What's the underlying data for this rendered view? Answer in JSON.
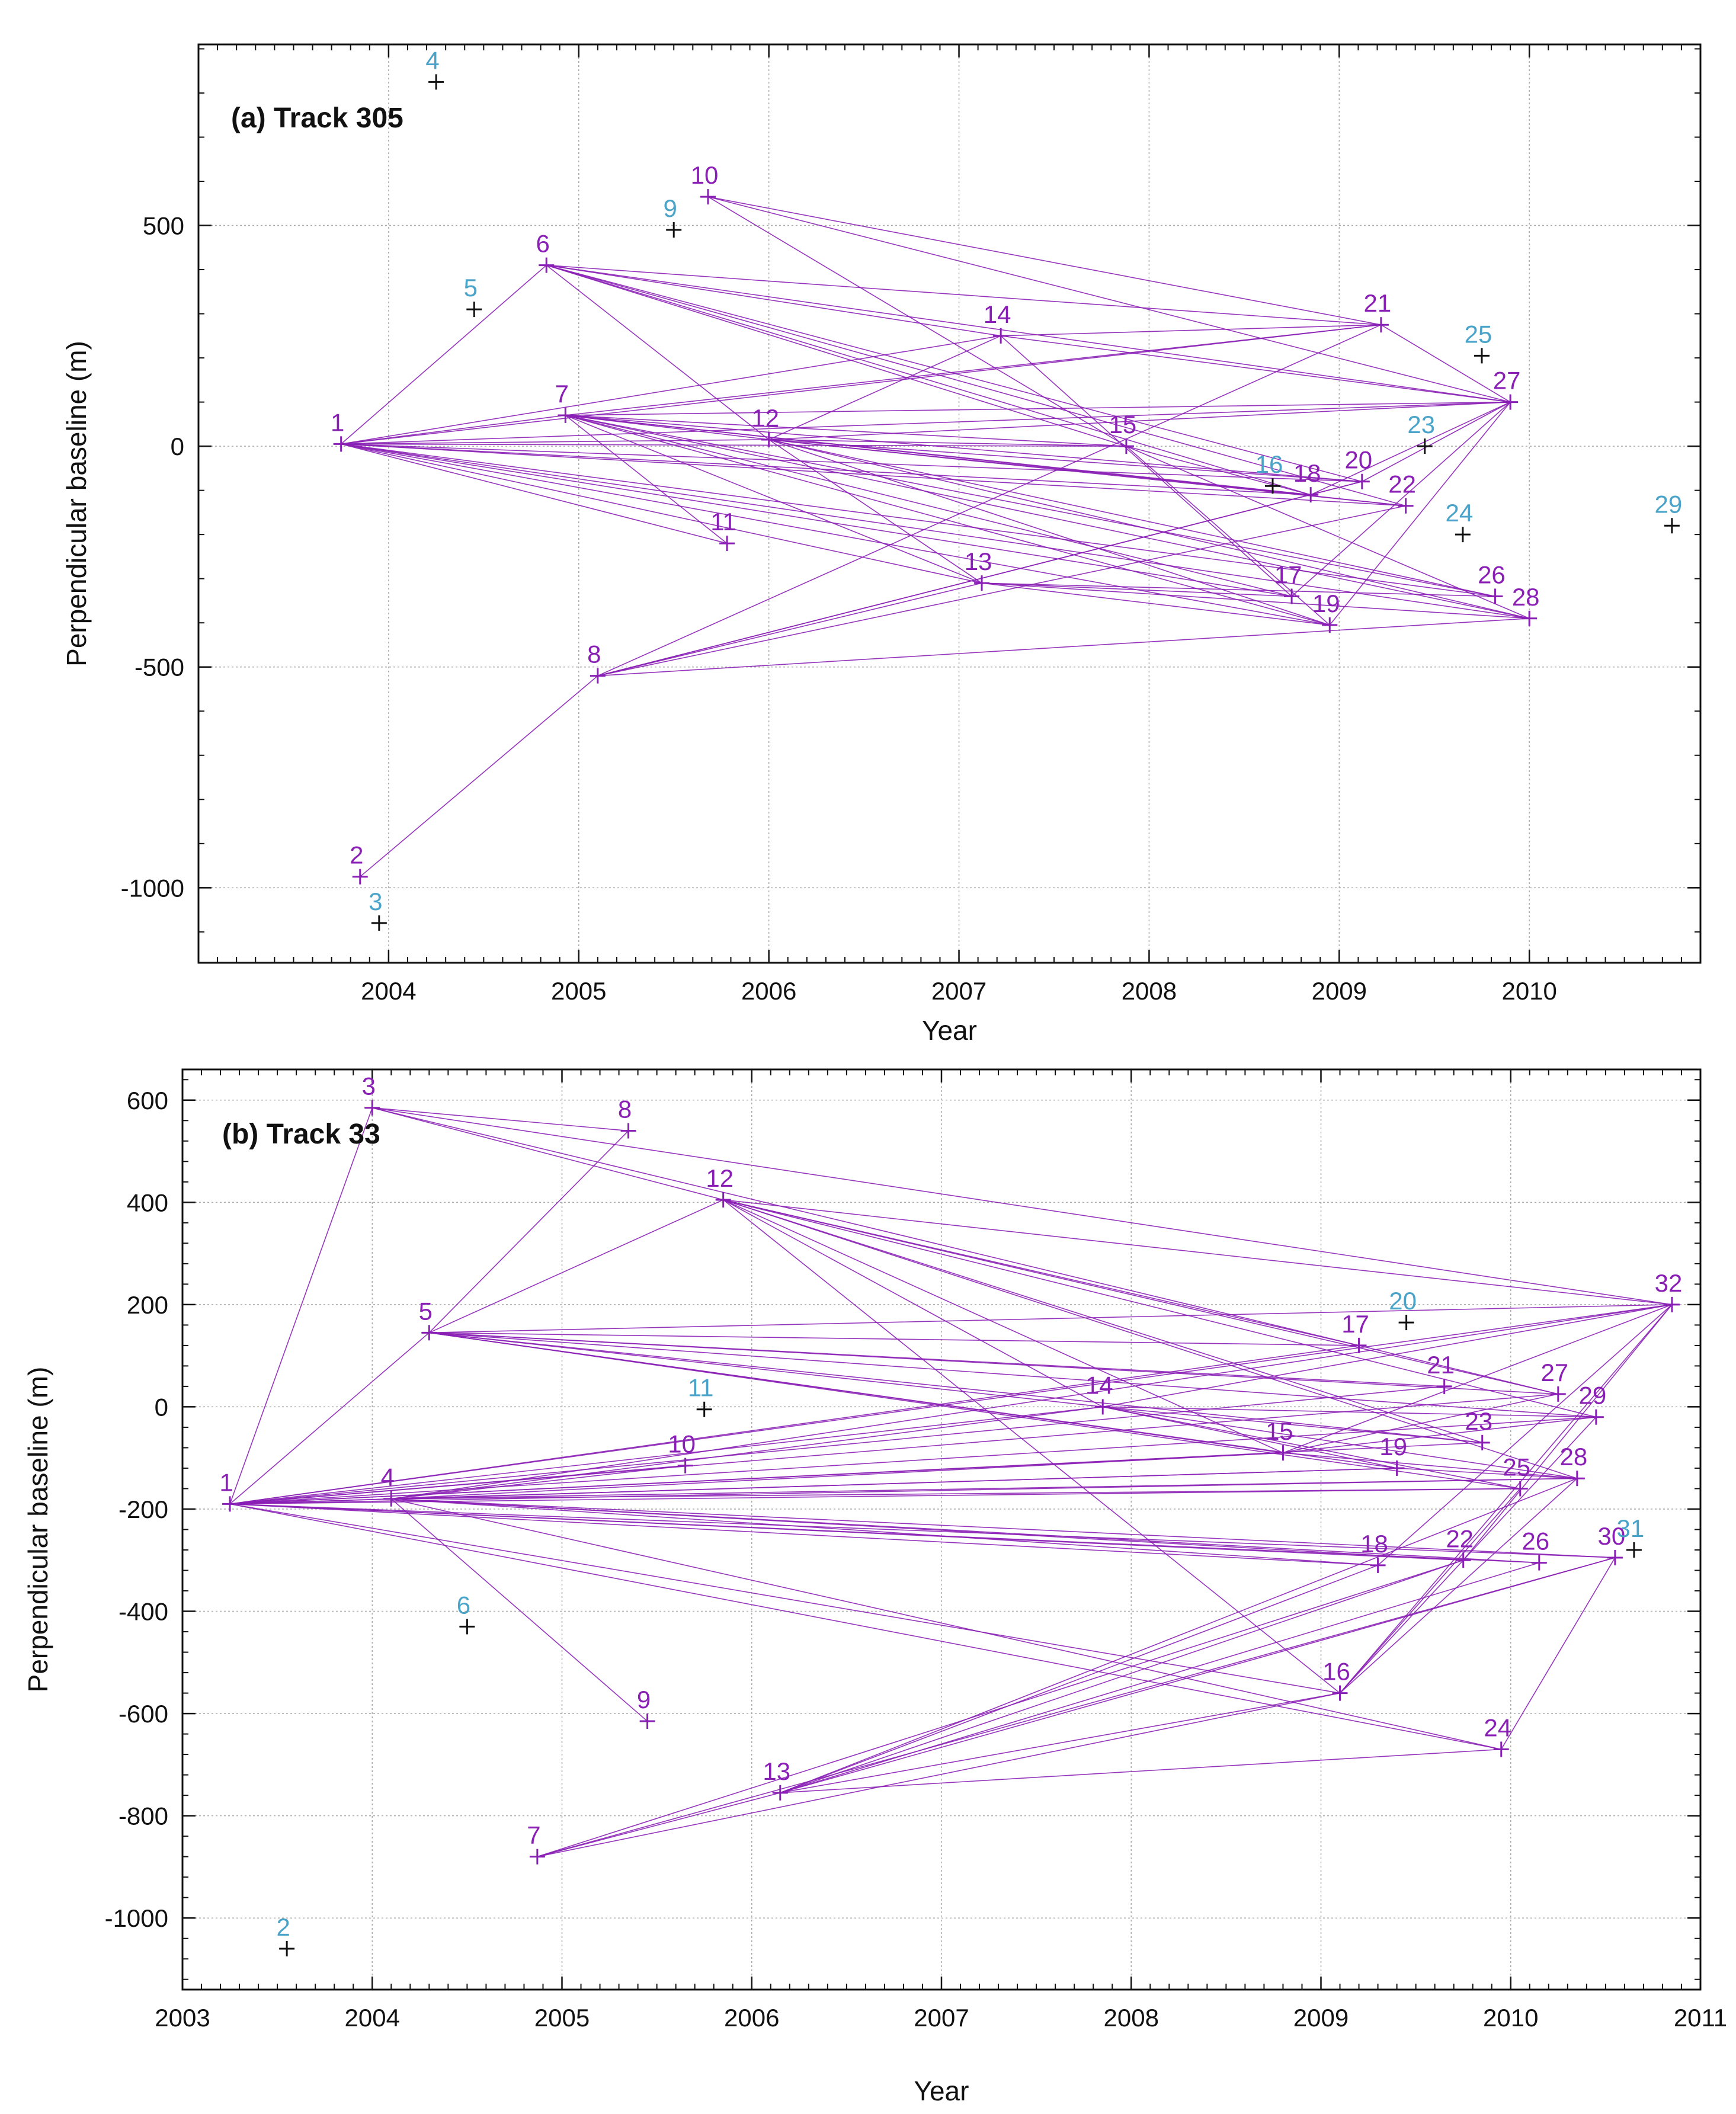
{
  "colors": {
    "active": "#8a1fb5",
    "inactive_label": "#4aa3c8",
    "inactive_marker": "#111111",
    "grid": "#aaaaaa",
    "axis": "#111111"
  },
  "chart_data": [
    {
      "type": "scatter",
      "title": "(a) Track 305",
      "xlabel": "Year",
      "ylabel": "Perpendicular baseline (m)",
      "xlim": [
        2003.0,
        2010.9
      ],
      "ylim": [
        -1170,
        910
      ],
      "xticks": [
        2004,
        2005,
        2006,
        2007,
        2008,
        2009,
        2010
      ],
      "xtick_labels": [
        "2004",
        "2005",
        "2006",
        "2007",
        "2008",
        "2009",
        "2010"
      ],
      "yticks": [
        -1000,
        -500,
        0,
        500
      ],
      "ytick_labels": [
        "-1000",
        "-500",
        "0",
        "500"
      ],
      "points": [
        {
          "id": "1",
          "x": 2003.75,
          "y": 5,
          "active": true
        },
        {
          "id": "2",
          "x": 2003.85,
          "y": -975,
          "active": true
        },
        {
          "id": "3",
          "x": 2003.95,
          "y": -1080,
          "active": false
        },
        {
          "id": "4",
          "x": 2004.25,
          "y": 825,
          "active": false
        },
        {
          "id": "5",
          "x": 2004.45,
          "y": 310,
          "active": false
        },
        {
          "id": "6",
          "x": 2004.83,
          "y": 410,
          "active": true
        },
        {
          "id": "7",
          "x": 2004.93,
          "y": 70,
          "active": true
        },
        {
          "id": "8",
          "x": 2005.1,
          "y": -520,
          "active": true
        },
        {
          "id": "9",
          "x": 2005.5,
          "y": 490,
          "active": false
        },
        {
          "id": "10",
          "x": 2005.68,
          "y": 565,
          "active": true
        },
        {
          "id": "11",
          "x": 2005.78,
          "y": -220,
          "active": true
        },
        {
          "id": "12",
          "x": 2006.0,
          "y": 15,
          "active": true
        },
        {
          "id": "13",
          "x": 2007.12,
          "y": -310,
          "active": true
        },
        {
          "id": "14",
          "x": 2007.22,
          "y": 250,
          "active": true
        },
        {
          "id": "15",
          "x": 2007.88,
          "y": 0,
          "active": true
        },
        {
          "id": "16",
          "x": 2008.65,
          "y": -90,
          "active": false
        },
        {
          "id": "17",
          "x": 2008.75,
          "y": -340,
          "active": true
        },
        {
          "id": "18",
          "x": 2008.85,
          "y": -110,
          "active": true
        },
        {
          "id": "19",
          "x": 2008.95,
          "y": -405,
          "active": true
        },
        {
          "id": "20",
          "x": 2009.12,
          "y": -80,
          "active": true
        },
        {
          "id": "21",
          "x": 2009.22,
          "y": 275,
          "active": true
        },
        {
          "id": "22",
          "x": 2009.35,
          "y": -135,
          "active": true
        },
        {
          "id": "23",
          "x": 2009.45,
          "y": 0,
          "active": false
        },
        {
          "id": "24",
          "x": 2009.65,
          "y": -200,
          "active": false
        },
        {
          "id": "25",
          "x": 2009.75,
          "y": 205,
          "active": false
        },
        {
          "id": "26",
          "x": 2009.82,
          "y": -340,
          "active": true
        },
        {
          "id": "27",
          "x": 2009.9,
          "y": 100,
          "active": true
        },
        {
          "id": "28",
          "x": 2010.0,
          "y": -390,
          "active": true
        },
        {
          "id": "29",
          "x": 2010.75,
          "y": -180,
          "active": false
        }
      ],
      "pairs": [
        [
          "1",
          "6"
        ],
        [
          "1",
          "7"
        ],
        [
          "1",
          "12"
        ],
        [
          "1",
          "13"
        ],
        [
          "1",
          "14"
        ],
        [
          "1",
          "15"
        ],
        [
          "1",
          "18"
        ],
        [
          "1",
          "19"
        ],
        [
          "1",
          "20"
        ],
        [
          "1",
          "21"
        ],
        [
          "1",
          "22"
        ],
        [
          "1",
          "26"
        ],
        [
          "1",
          "27"
        ],
        [
          "1",
          "28"
        ],
        [
          "1",
          "11"
        ],
        [
          "1",
          "17"
        ],
        [
          "2",
          "8"
        ],
        [
          "6",
          "12"
        ],
        [
          "6",
          "14"
        ],
        [
          "6",
          "15"
        ],
        [
          "6",
          "18"
        ],
        [
          "6",
          "20"
        ],
        [
          "6",
          "21"
        ],
        [
          "6",
          "22"
        ],
        [
          "6",
          "27"
        ],
        [
          "7",
          "12"
        ],
        [
          "7",
          "13"
        ],
        [
          "7",
          "15"
        ],
        [
          "7",
          "17"
        ],
        [
          "7",
          "18"
        ],
        [
          "7",
          "19"
        ],
        [
          "7",
          "20"
        ],
        [
          "7",
          "21"
        ],
        [
          "7",
          "22"
        ],
        [
          "7",
          "26"
        ],
        [
          "7",
          "27"
        ],
        [
          "7",
          "28"
        ],
        [
          "7",
          "11"
        ],
        [
          "8",
          "13"
        ],
        [
          "8",
          "18"
        ],
        [
          "8",
          "20"
        ],
        [
          "8",
          "21"
        ],
        [
          "8",
          "28"
        ],
        [
          "8",
          "22"
        ],
        [
          "10",
          "21"
        ],
        [
          "10",
          "27"
        ],
        [
          "10",
          "15"
        ],
        [
          "12",
          "13"
        ],
        [
          "12",
          "15"
        ],
        [
          "12",
          "18"
        ],
        [
          "12",
          "19"
        ],
        [
          "12",
          "20"
        ],
        [
          "12",
          "22"
        ],
        [
          "12",
          "26"
        ],
        [
          "12",
          "27"
        ],
        [
          "12",
          "28"
        ],
        [
          "12",
          "14"
        ],
        [
          "13",
          "26"
        ],
        [
          "13",
          "28"
        ],
        [
          "13",
          "19"
        ],
        [
          "13",
          "17"
        ],
        [
          "14",
          "27"
        ],
        [
          "14",
          "17"
        ],
        [
          "14",
          "21"
        ],
        [
          "15",
          "18"
        ],
        [
          "15",
          "28"
        ],
        [
          "15",
          "19"
        ],
        [
          "17",
          "27"
        ],
        [
          "19",
          "27"
        ],
        [
          "18",
          "27"
        ],
        [
          "20",
          "27"
        ],
        [
          "20",
          "18"
        ],
        [
          "21",
          "27"
        ]
      ]
    },
    {
      "type": "scatter",
      "title": "(b) Track 33",
      "xlabel": "Year",
      "ylabel": "Perpendicular baseline (m)",
      "xlim": [
        2003.0,
        2011.0
      ],
      "ylim": [
        -1140,
        660
      ],
      "xticks": [
        2003,
        2004,
        2005,
        2006,
        2007,
        2008,
        2009,
        2010,
        2011
      ],
      "xtick_labels": [
        "2003",
        "2004",
        "2005",
        "2006",
        "2007",
        "2008",
        "2009",
        "2010",
        "2011"
      ],
      "yticks": [
        -1000,
        -800,
        -600,
        -400,
        -200,
        0,
        200,
        400,
        600
      ],
      "ytick_labels": [
        "-1000",
        "-800",
        "-600",
        "-400",
        "-200",
        "0",
        "200",
        "400",
        "600"
      ],
      "points": [
        {
          "id": "1",
          "x": 2003.25,
          "y": -190,
          "active": true
        },
        {
          "id": "2",
          "x": 2003.55,
          "y": -1060,
          "active": false
        },
        {
          "id": "3",
          "x": 2004.0,
          "y": 585,
          "active": true
        },
        {
          "id": "4",
          "x": 2004.1,
          "y": -180,
          "active": true
        },
        {
          "id": "5",
          "x": 2004.3,
          "y": 145,
          "active": true
        },
        {
          "id": "6",
          "x": 2004.5,
          "y": -430,
          "active": false
        },
        {
          "id": "7",
          "x": 2004.87,
          "y": -880,
          "active": true
        },
        {
          "id": "8",
          "x": 2005.35,
          "y": 540,
          "active": true
        },
        {
          "id": "9",
          "x": 2005.45,
          "y": -615,
          "active": true
        },
        {
          "id": "10",
          "x": 2005.65,
          "y": -115,
          "active": true
        },
        {
          "id": "11",
          "x": 2005.75,
          "y": -5,
          "active": false
        },
        {
          "id": "12",
          "x": 2005.85,
          "y": 405,
          "active": true
        },
        {
          "id": "13",
          "x": 2006.15,
          "y": -755,
          "active": true
        },
        {
          "id": "14",
          "x": 2007.85,
          "y": 0,
          "active": true
        },
        {
          "id": "15",
          "x": 2008.8,
          "y": -90,
          "active": true
        },
        {
          "id": "16",
          "x": 2009.1,
          "y": -560,
          "active": true
        },
        {
          "id": "17",
          "x": 2009.2,
          "y": 120,
          "active": true
        },
        {
          "id": "18",
          "x": 2009.3,
          "y": -310,
          "active": true
        },
        {
          "id": "19",
          "x": 2009.4,
          "y": -120,
          "active": true
        },
        {
          "id": "20",
          "x": 2009.45,
          "y": 165,
          "active": false
        },
        {
          "id": "21",
          "x": 2009.65,
          "y": 40,
          "active": true
        },
        {
          "id": "22",
          "x": 2009.75,
          "y": -300,
          "active": true
        },
        {
          "id": "23",
          "x": 2009.85,
          "y": -70,
          "active": true
        },
        {
          "id": "24",
          "x": 2009.95,
          "y": -670,
          "active": true
        },
        {
          "id": "25",
          "x": 2010.05,
          "y": -160,
          "active": true
        },
        {
          "id": "26",
          "x": 2010.15,
          "y": -305,
          "active": true
        },
        {
          "id": "27",
          "x": 2010.25,
          "y": 25,
          "active": true
        },
        {
          "id": "28",
          "x": 2010.35,
          "y": -140,
          "active": true
        },
        {
          "id": "29",
          "x": 2010.45,
          "y": -20,
          "active": true
        },
        {
          "id": "30",
          "x": 2010.55,
          "y": -295,
          "active": true
        },
        {
          "id": "31",
          "x": 2010.65,
          "y": -280,
          "active": false
        },
        {
          "id": "32",
          "x": 2010.85,
          "y": 200,
          "active": true
        }
      ],
      "pairs": [
        [
          "1",
          "3"
        ],
        [
          "1",
          "4"
        ],
        [
          "1",
          "5"
        ],
        [
          "1",
          "10"
        ],
        [
          "1",
          "14"
        ],
        [
          "1",
          "15"
        ],
        [
          "1",
          "17"
        ],
        [
          "1",
          "18"
        ],
        [
          "1",
          "19"
        ],
        [
          "1",
          "21"
        ],
        [
          "1",
          "22"
        ],
        [
          "1",
          "23"
        ],
        [
          "1",
          "25"
        ],
        [
          "1",
          "26"
        ],
        [
          "1",
          "27"
        ],
        [
          "1",
          "28"
        ],
        [
          "1",
          "29"
        ],
        [
          "1",
          "30"
        ],
        [
          "1",
          "32"
        ],
        [
          "1",
          "16"
        ],
        [
          "1",
          "24"
        ],
        [
          "3",
          "8"
        ],
        [
          "3",
          "12"
        ],
        [
          "3",
          "17"
        ],
        [
          "3",
          "32"
        ],
        [
          "4",
          "9"
        ],
        [
          "4",
          "14"
        ],
        [
          "4",
          "15"
        ],
        [
          "4",
          "18"
        ],
        [
          "4",
          "19"
        ],
        [
          "4",
          "22"
        ],
        [
          "4",
          "25"
        ],
        [
          "4",
          "26"
        ],
        [
          "4",
          "28"
        ],
        [
          "4",
          "30"
        ],
        [
          "4",
          "32"
        ],
        [
          "4",
          "24"
        ],
        [
          "4",
          "10"
        ],
        [
          "5",
          "8"
        ],
        [
          "5",
          "12"
        ],
        [
          "5",
          "14"
        ],
        [
          "5",
          "15"
        ],
        [
          "5",
          "17"
        ],
        [
          "5",
          "19"
        ],
        [
          "5",
          "21"
        ],
        [
          "5",
          "23"
        ],
        [
          "5",
          "25"
        ],
        [
          "5",
          "27"
        ],
        [
          "5",
          "29"
        ],
        [
          "5",
          "32"
        ],
        [
          "7",
          "13"
        ],
        [
          "7",
          "16"
        ],
        [
          "7",
          "22"
        ],
        [
          "7",
          "30"
        ],
        [
          "12",
          "14"
        ],
        [
          "12",
          "15"
        ],
        [
          "12",
          "17"
        ],
        [
          "12",
          "23"
        ],
        [
          "12",
          "27"
        ],
        [
          "12",
          "28"
        ],
        [
          "12",
          "29"
        ],
        [
          "12",
          "32"
        ],
        [
          "12",
          "16"
        ],
        [
          "13",
          "16"
        ],
        [
          "13",
          "18"
        ],
        [
          "13",
          "22"
        ],
        [
          "13",
          "26"
        ],
        [
          "13",
          "28"
        ],
        [
          "13",
          "24"
        ],
        [
          "13",
          "30"
        ],
        [
          "14",
          "19"
        ],
        [
          "14",
          "23"
        ],
        [
          "14",
          "25"
        ],
        [
          "14",
          "28"
        ],
        [
          "14",
          "32"
        ],
        [
          "14",
          "29"
        ],
        [
          "15",
          "27"
        ],
        [
          "15",
          "29"
        ],
        [
          "15",
          "32"
        ],
        [
          "16",
          "25"
        ],
        [
          "16",
          "28"
        ],
        [
          "16",
          "32"
        ],
        [
          "16",
          "29"
        ],
        [
          "18",
          "32"
        ],
        [
          "19",
          "28"
        ],
        [
          "22",
          "32"
        ],
        [
          "24",
          "30"
        ],
        [
          "17",
          "27"
        ],
        [
          "15",
          "28"
        ]
      ]
    }
  ]
}
